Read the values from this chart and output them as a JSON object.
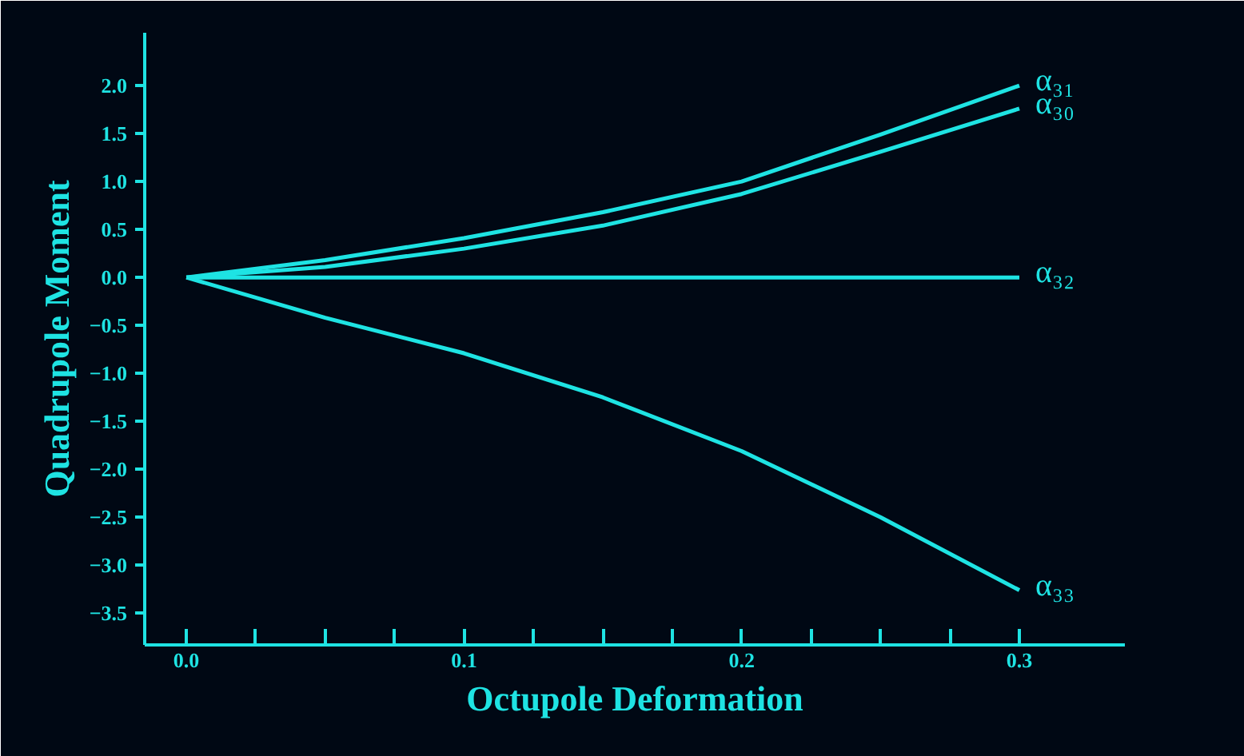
{
  "chart_data": {
    "type": "line",
    "xlabel": "Octupole Deformation",
    "ylabel": "Quadrupole Moment",
    "x": [
      0.0,
      0.05,
      0.1,
      0.15,
      0.2,
      0.25,
      0.3
    ],
    "series": [
      {
        "name": "α₃₁",
        "color": "#1ee3e3",
        "values": [
          0.0,
          0.18,
          0.41,
          0.68,
          1.0,
          1.49,
          2.0
        ]
      },
      {
        "name": "α₃₀",
        "color": "#1ee3e3",
        "values": [
          0.0,
          0.11,
          0.3,
          0.54,
          0.87,
          1.31,
          1.76
        ]
      },
      {
        "name": "α₃₂",
        "color": "#1ee3e3",
        "values": [
          0.0,
          0.0,
          0.0,
          0.0,
          0.0,
          0.0,
          0.0
        ]
      },
      {
        "name": "α₃₃",
        "color": "#1ee3e3",
        "values": [
          0.0,
          -0.42,
          -0.79,
          -1.25,
          -1.81,
          -2.5,
          -3.26
        ]
      }
    ],
    "xlim": [
      -0.015,
      0.338
    ],
    "ylim": [
      -3.83,
      2.55
    ],
    "xticks": [
      {
        "value": 0.0,
        "label": "0.0"
      },
      {
        "value": 0.025,
        "label": null
      },
      {
        "value": 0.05,
        "label": null
      },
      {
        "value": 0.075,
        "label": null
      },
      {
        "value": 0.1,
        "label": "0.1"
      },
      {
        "value": 0.125,
        "label": null
      },
      {
        "value": 0.15,
        "label": null
      },
      {
        "value": 0.175,
        "label": null
      },
      {
        "value": 0.2,
        "label": "0.2"
      },
      {
        "value": 0.225,
        "label": null
      },
      {
        "value": 0.25,
        "label": null
      },
      {
        "value": 0.275,
        "label": null
      },
      {
        "value": 0.3,
        "label": "0.3"
      }
    ],
    "yticks": [
      {
        "value": 2.0,
        "label": "2.0"
      },
      {
        "value": 1.5,
        "label": "1.5"
      },
      {
        "value": 1.0,
        "label": "1.0"
      },
      {
        "value": 0.5,
        "label": "0.5"
      },
      {
        "value": 0.0,
        "label": "0.0"
      },
      {
        "value": -0.5,
        "label": "−0.5"
      },
      {
        "value": -1.0,
        "label": "−1.0"
      },
      {
        "value": -1.5,
        "label": "−1.5"
      },
      {
        "value": -2.0,
        "label": "−2.0"
      },
      {
        "value": -2.5,
        "label": "−2.5"
      },
      {
        "value": -3.0,
        "label": "−3.0"
      },
      {
        "value": -3.5,
        "label": "−3.5"
      }
    ],
    "grid": false,
    "marker": "none",
    "line_style": "solid"
  }
}
